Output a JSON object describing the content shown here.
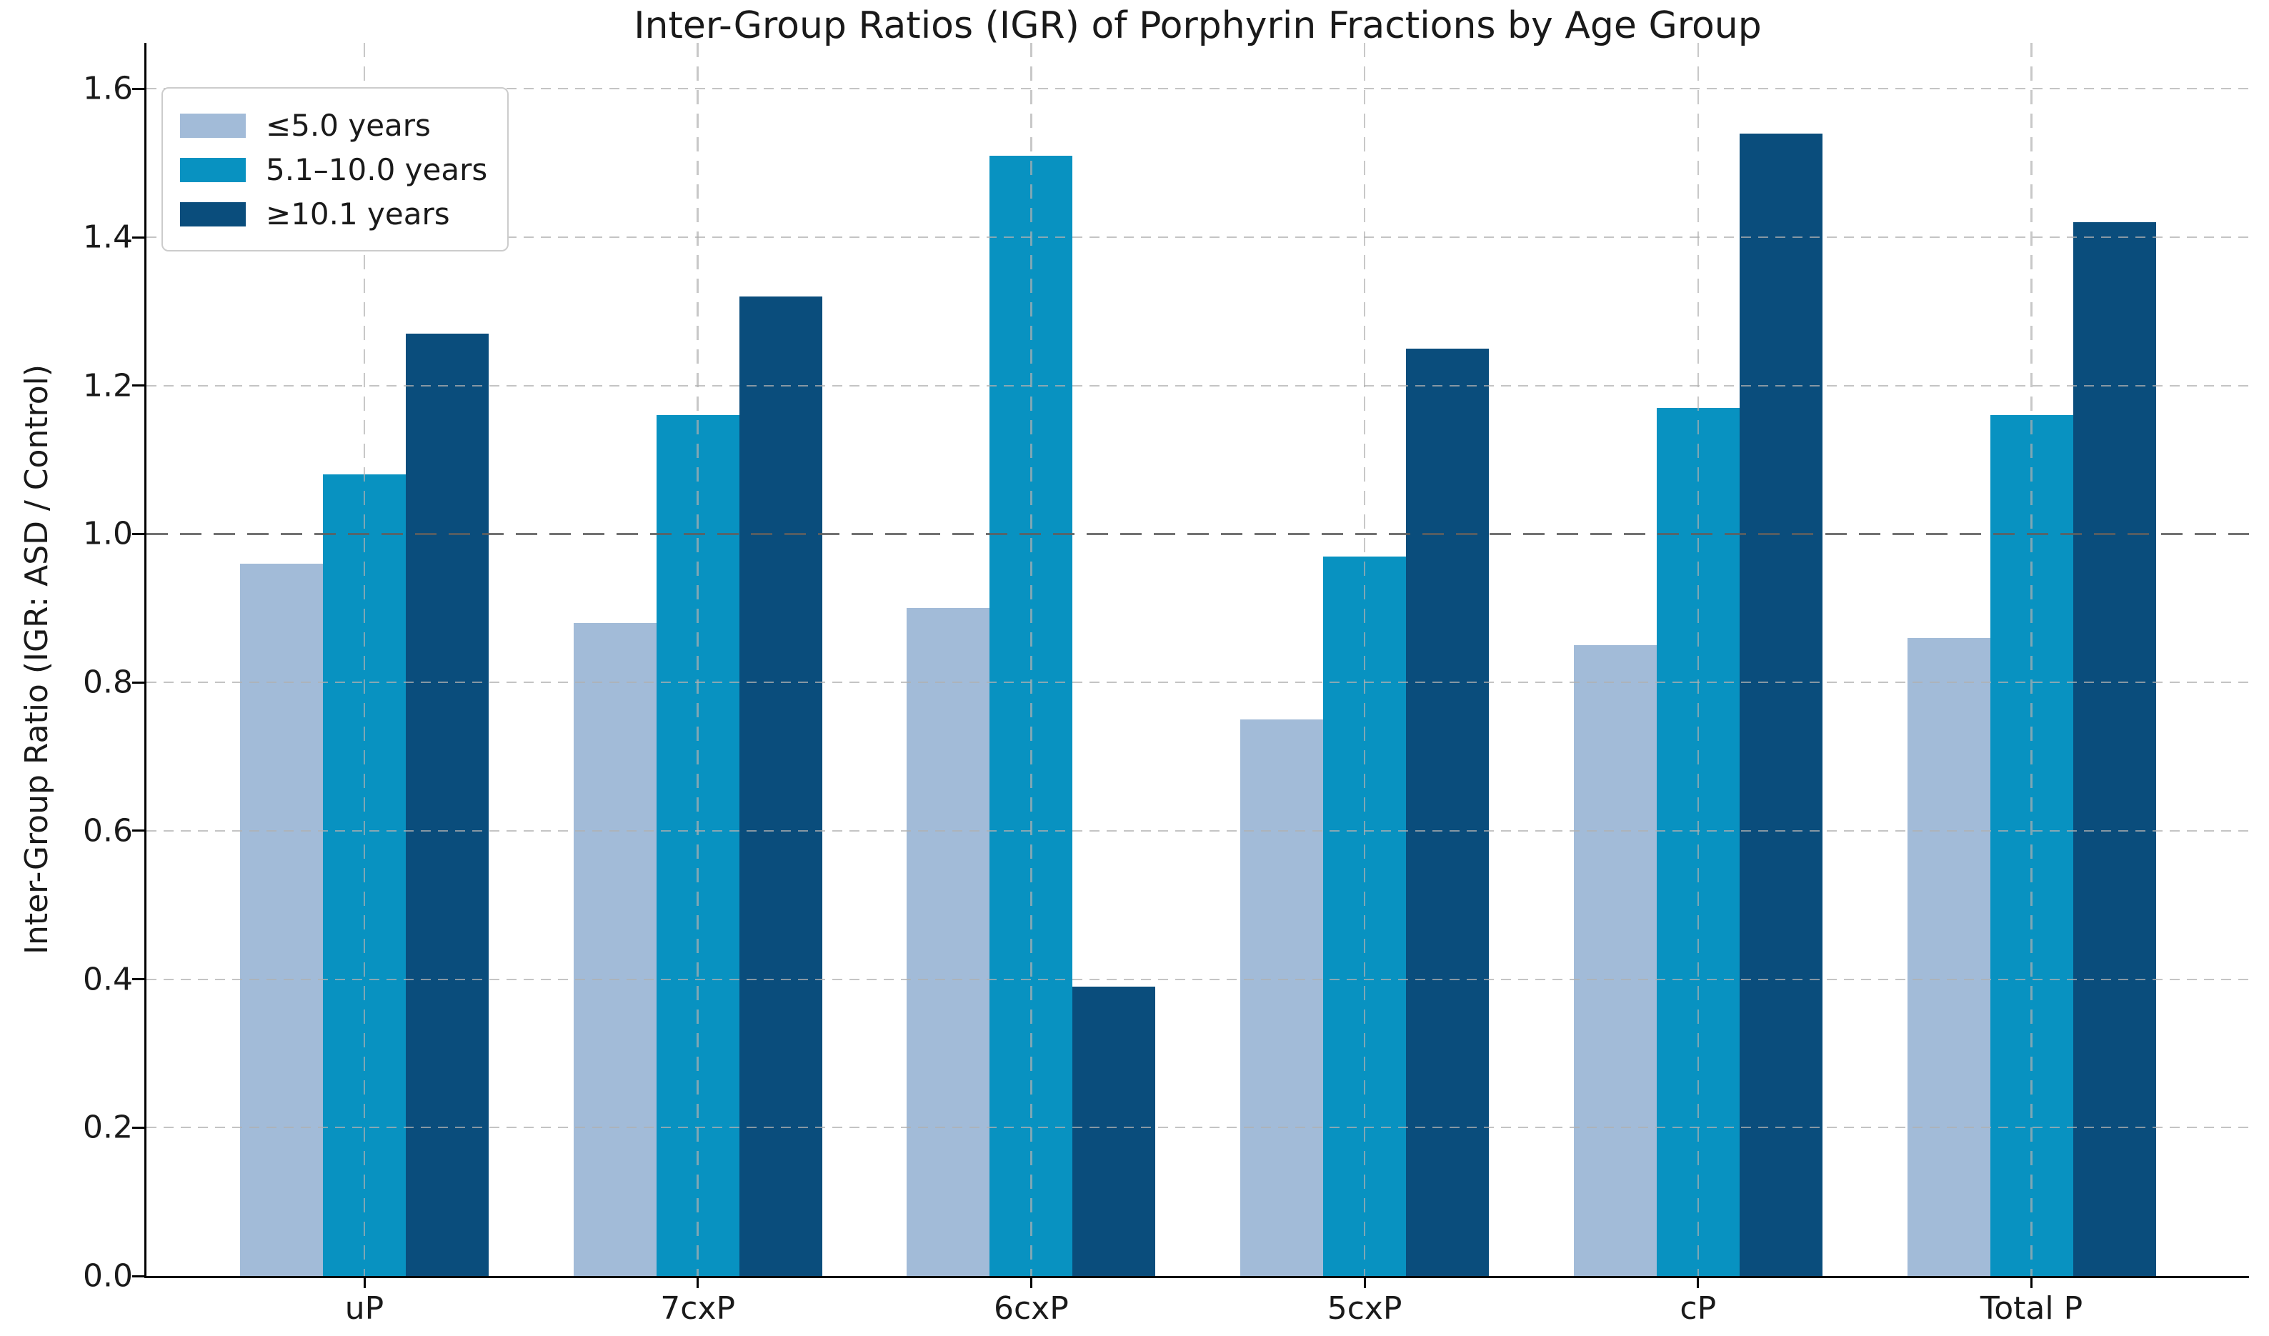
{
  "figure": {
    "title": "Inter-Group Ratios (IGR) of Porphyrin Fractions by Age Group",
    "ylabel": "Inter-Group Ratio (IGR: ASD / Control)"
  },
  "chart_data": {
    "type": "bar",
    "title": "Inter-Group Ratios (IGR) of Porphyrin Fractions by Age Group",
    "xlabel": "",
    "ylabel": "Inter-Group Ratio (IGR: ASD / Control)",
    "categories": [
      "uP",
      "7cxP",
      "6cxP",
      "5cxP",
      "cP",
      "Total P"
    ],
    "series": [
      {
        "name": "≤5.0 years",
        "color": "#a2bbd8",
        "values": [
          0.96,
          0.88,
          0.9,
          0.75,
          0.85,
          0.86
        ]
      },
      {
        "name": "5.1–10.0 years",
        "color": "#0892c1",
        "values": [
          1.08,
          1.16,
          1.51,
          0.97,
          1.17,
          1.16
        ]
      },
      {
        "name": "≥10.1 years",
        "color": "#0a4d7c",
        "values": [
          1.27,
          1.32,
          0.39,
          1.25,
          1.54,
          1.42
        ]
      }
    ],
    "yticks": [
      0.0,
      0.2,
      0.4,
      0.6,
      0.8,
      1.0,
      1.2,
      1.4,
      1.6
    ],
    "ylim": [
      0,
      1.662
    ],
    "reference_line": 1.0,
    "grid": true,
    "grid_style": "dashed",
    "legend_position": "upper left",
    "colors": {
      "grid": "#b0b0b0",
      "reference_line": "#5f5f5f",
      "axis": "#000000",
      "text": "#1a1a1a",
      "background": "#ffffff"
    }
  }
}
